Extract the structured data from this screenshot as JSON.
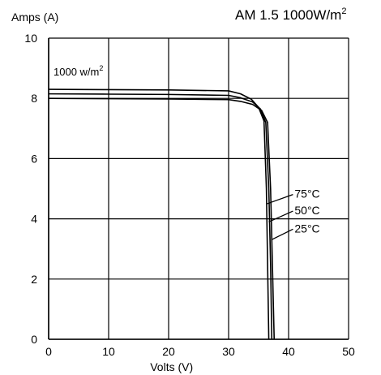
{
  "chart_data": {
    "type": "line",
    "title": "AM 1.5 1000W/m",
    "title_superscript": "2",
    "ylabel": "Amps (A)",
    "xlabel": "Volts (V)",
    "xlim": [
      0,
      50
    ],
    "ylim": [
      0,
      10
    ],
    "x_ticks": [
      "0",
      "10",
      "20",
      "30",
      "40",
      "50"
    ],
    "y_ticks": [
      "0",
      "2",
      "4",
      "6",
      "8",
      "10"
    ],
    "grid": true,
    "annotation": {
      "text": "1000 w/m",
      "superscript": "2"
    },
    "series": [
      {
        "name": "25°C",
        "points": [
          [
            0,
            8.0
          ],
          [
            10,
            7.99
          ],
          [
            20,
            7.98
          ],
          [
            30,
            7.96
          ],
          [
            32,
            7.9
          ],
          [
            34,
            7.8
          ],
          [
            35.5,
            7.6
          ],
          [
            36.5,
            7.2
          ],
          [
            37.0,
            5.0
          ],
          [
            37.3,
            2.5
          ],
          [
            37.6,
            0
          ]
        ]
      },
      {
        "name": "50°C",
        "points": [
          [
            0,
            8.15
          ],
          [
            10,
            8.14
          ],
          [
            20,
            8.13
          ],
          [
            30,
            8.1
          ],
          [
            32,
            8.02
          ],
          [
            34,
            7.88
          ],
          [
            35.3,
            7.65
          ],
          [
            36.2,
            7.2
          ],
          [
            36.7,
            5.0
          ],
          [
            37.0,
            2.5
          ],
          [
            37.2,
            0
          ]
        ]
      },
      {
        "name": "75°C",
        "points": [
          [
            0,
            8.3
          ],
          [
            10,
            8.29
          ],
          [
            20,
            8.28
          ],
          [
            30,
            8.25
          ],
          [
            32,
            8.15
          ],
          [
            33.8,
            7.97
          ],
          [
            35.0,
            7.7
          ],
          [
            35.9,
            7.25
          ],
          [
            36.3,
            5.0
          ],
          [
            36.5,
            2.5
          ],
          [
            36.7,
            0
          ]
        ]
      }
    ],
    "curve_labels": [
      {
        "name": "75°C",
        "label_x": 41.0,
        "label_y": 4.7,
        "point_x": 36.4,
        "point_y": 4.5
      },
      {
        "name": "50°C",
        "label_x": 41.0,
        "label_y": 4.15,
        "point_x": 36.7,
        "point_y": 3.9
      },
      {
        "name": "25°C",
        "label_x": 41.0,
        "label_y": 3.55,
        "point_x": 37.1,
        "point_y": 3.3
      }
    ]
  }
}
